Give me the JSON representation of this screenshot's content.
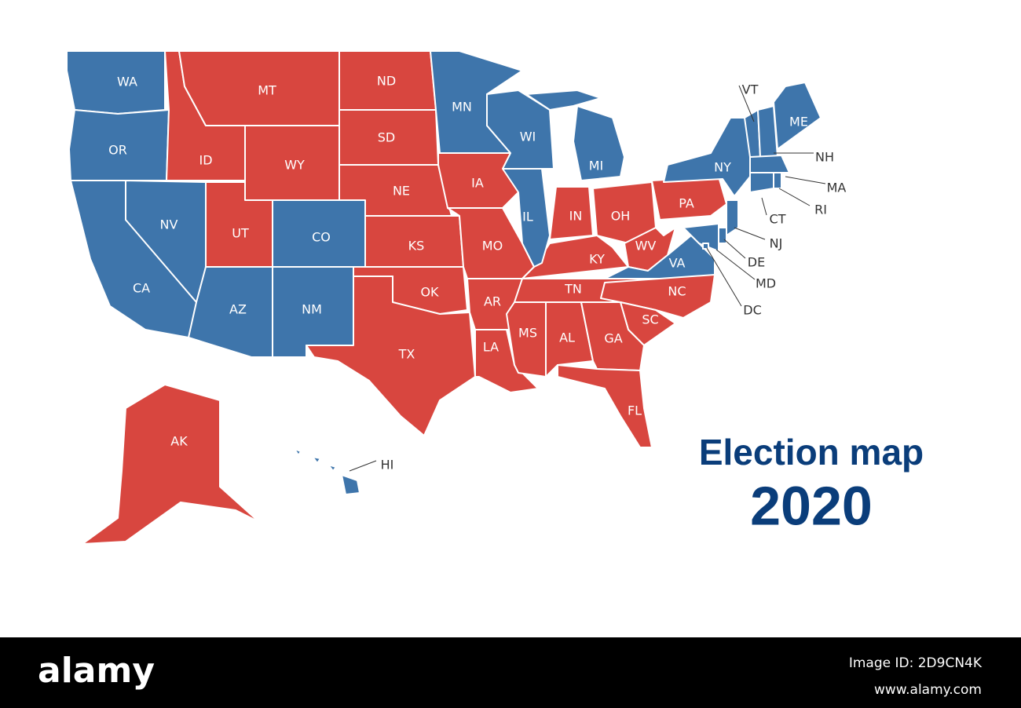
{
  "title": "Election map",
  "subtitle": "2020",
  "map": {
    "states": [
      {
        "label": "WA",
        "color": "#3e75ab"
      },
      {
        "label": "OR",
        "color": "#3e75ab"
      },
      {
        "label": "CA",
        "color": "#3e75ab"
      },
      {
        "label": "NV",
        "color": "#3e75ab"
      },
      {
        "label": "ID",
        "color": "#d8463f"
      },
      {
        "label": "MT",
        "color": "#d8463f"
      },
      {
        "label": "WY",
        "color": "#d8463f"
      },
      {
        "label": "UT",
        "color": "#d8463f"
      },
      {
        "label": "CO",
        "color": "#3e75ab"
      },
      {
        "label": "AZ",
        "color": "#3e75ab"
      },
      {
        "label": "NM",
        "color": "#3e75ab"
      },
      {
        "label": "ND",
        "color": "#d8463f"
      },
      {
        "label": "SD",
        "color": "#d8463f"
      },
      {
        "label": "NE",
        "color": "#d8463f"
      },
      {
        "label": "KS",
        "color": "#d8463f"
      },
      {
        "label": "OK",
        "color": "#d8463f"
      },
      {
        "label": "TX",
        "color": "#d8463f"
      },
      {
        "label": "MN",
        "color": "#3e75ab"
      },
      {
        "label": "IA",
        "color": "#d8463f"
      },
      {
        "label": "MO",
        "color": "#d8463f"
      },
      {
        "label": "AR",
        "color": "#d8463f"
      },
      {
        "label": "LA",
        "color": "#d8463f"
      },
      {
        "label": "MS",
        "color": "#d8463f"
      },
      {
        "label": "AL",
        "color": "#d8463f"
      },
      {
        "label": "TN",
        "color": "#d8463f"
      },
      {
        "label": "KY",
        "color": "#d8463f"
      },
      {
        "label": "IL",
        "color": "#3e75ab"
      },
      {
        "label": "WI",
        "color": "#3e75ab"
      },
      {
        "label": "MI",
        "color": "#3e75ab"
      },
      {
        "label": "IN",
        "color": "#d8463f"
      },
      {
        "label": "OH",
        "color": "#d8463f"
      },
      {
        "label": "WV",
        "color": "#d8463f"
      },
      {
        "label": "PA",
        "color": "#d8463f"
      },
      {
        "label": "VA",
        "color": "#3e75ab"
      },
      {
        "label": "NC",
        "color": "#d8463f"
      },
      {
        "label": "SC",
        "color": "#d8463f"
      },
      {
        "label": "GA",
        "color": "#d8463f"
      },
      {
        "label": "FL",
        "color": "#d8463f"
      },
      {
        "label": "NY",
        "color": "#3e75ab"
      },
      {
        "label": "VT",
        "color": "#3e75ab"
      },
      {
        "label": "NH",
        "color": "#3e75ab"
      },
      {
        "label": "ME",
        "color": "#3e75ab"
      },
      {
        "label": "MA",
        "color": "#3e75ab"
      },
      {
        "label": "RI",
        "color": "#3e75ab"
      },
      {
        "label": "CT",
        "color": "#3e75ab"
      },
      {
        "label": "NJ",
        "color": "#3e75ab"
      },
      {
        "label": "DE",
        "color": "#3e75ab"
      },
      {
        "label": "MD",
        "color": "#3e75ab"
      },
      {
        "label": "DC",
        "color": "#3e75ab"
      },
      {
        "label": "HI",
        "color": "#3e75ab"
      },
      {
        "label": "AK",
        "color": "#d8463f"
      }
    ]
  },
  "footer": {
    "logo": "alamy",
    "image_id": "Image ID: 2D9CN4K",
    "url": "www.alamy.com"
  }
}
